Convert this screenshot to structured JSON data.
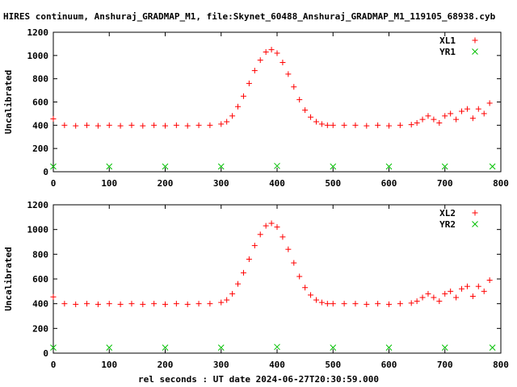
{
  "title": "HIRES continuum, Anshuraj_GRADMAP_M1, file:Skynet_60488_Anshuraj_GRADMAP_M1_119105_68938.cyb",
  "xlabel": "rel seconds : UT date 2024-06-27T20:30:59.000",
  "colors": {
    "xl": "#ff0000",
    "yr": "#00c000",
    "axis": "#000000"
  },
  "chart_data": [
    {
      "type": "scatter",
      "title": "",
      "xlabel": "",
      "ylabel": "Uncalibrated",
      "xlim": [
        0,
        800
      ],
      "ylim": [
        0,
        1200
      ],
      "x_ticks": [
        0,
        100,
        200,
        300,
        400,
        500,
        600,
        700,
        800
      ],
      "y_ticks": [
        0,
        200,
        400,
        600,
        800,
        1000,
        1200
      ],
      "legend": "top-right",
      "series": [
        {
          "name": "XL1",
          "marker": "plus",
          "color": "#ff0000",
          "x": [
            0,
            20,
            40,
            60,
            80,
            100,
            120,
            140,
            160,
            180,
            200,
            220,
            240,
            260,
            280,
            300,
            310,
            320,
            330,
            340,
            350,
            360,
            370,
            380,
            390,
            400,
            410,
            420,
            430,
            440,
            450,
            460,
            470,
            480,
            490,
            500,
            520,
            540,
            560,
            580,
            600,
            620,
            640,
            650,
            660,
            670,
            680,
            690,
            700,
            710,
            720,
            730,
            740,
            750,
            760,
            770,
            780
          ],
          "y": [
            455,
            400,
            395,
            400,
            395,
            400,
            395,
            400,
            395,
            400,
            395,
            400,
            395,
            400,
            400,
            410,
            430,
            480,
            560,
            650,
            760,
            870,
            960,
            1030,
            1050,
            1020,
            940,
            840,
            730,
            620,
            530,
            470,
            430,
            410,
            400,
            400,
            400,
            400,
            395,
            400,
            395,
            400,
            405,
            420,
            450,
            480,
            450,
            420,
            480,
            500,
            450,
            520,
            540,
            460,
            540,
            500,
            590
          ]
        },
        {
          "name": "YR1",
          "marker": "cross",
          "color": "#00c000",
          "x": [
            0,
            100,
            200,
            300,
            400,
            500,
            600,
            700,
            785
          ],
          "y": [
            45,
            45,
            45,
            45,
            50,
            45,
            45,
            45,
            45
          ]
        }
      ]
    },
    {
      "type": "scatter",
      "title": "",
      "xlabel": "rel seconds : UT date 2024-06-27T20:30:59.000",
      "ylabel": "Uncalibrated",
      "xlim": [
        0,
        800
      ],
      "ylim": [
        0,
        1200
      ],
      "x_ticks": [
        0,
        100,
        200,
        300,
        400,
        500,
        600,
        700,
        800
      ],
      "y_ticks": [
        0,
        200,
        400,
        600,
        800,
        1000,
        1200
      ],
      "legend": "top-right",
      "series": [
        {
          "name": "XL2",
          "marker": "plus",
          "color": "#ff0000",
          "x": [
            0,
            20,
            40,
            60,
            80,
            100,
            120,
            140,
            160,
            180,
            200,
            220,
            240,
            260,
            280,
            300,
            310,
            320,
            330,
            340,
            350,
            360,
            370,
            380,
            390,
            400,
            410,
            420,
            430,
            440,
            450,
            460,
            470,
            480,
            490,
            500,
            520,
            540,
            560,
            580,
            600,
            620,
            640,
            650,
            660,
            670,
            680,
            690,
            700,
            710,
            720,
            730,
            740,
            750,
            760,
            770,
            780
          ],
          "y": [
            455,
            400,
            395,
            400,
            395,
            400,
            395,
            400,
            395,
            400,
            395,
            400,
            395,
            400,
            400,
            410,
            430,
            480,
            560,
            650,
            760,
            870,
            960,
            1030,
            1050,
            1020,
            940,
            840,
            730,
            620,
            530,
            470,
            430,
            410,
            400,
            400,
            400,
            400,
            395,
            400,
            395,
            400,
            405,
            420,
            450,
            480,
            450,
            420,
            480,
            500,
            450,
            520,
            540,
            460,
            540,
            500,
            590
          ]
        },
        {
          "name": "YR2",
          "marker": "cross",
          "color": "#00c000",
          "x": [
            0,
            100,
            200,
            300,
            400,
            500,
            600,
            700,
            785
          ],
          "y": [
            45,
            45,
            45,
            45,
            50,
            45,
            45,
            45,
            45
          ]
        }
      ]
    }
  ]
}
